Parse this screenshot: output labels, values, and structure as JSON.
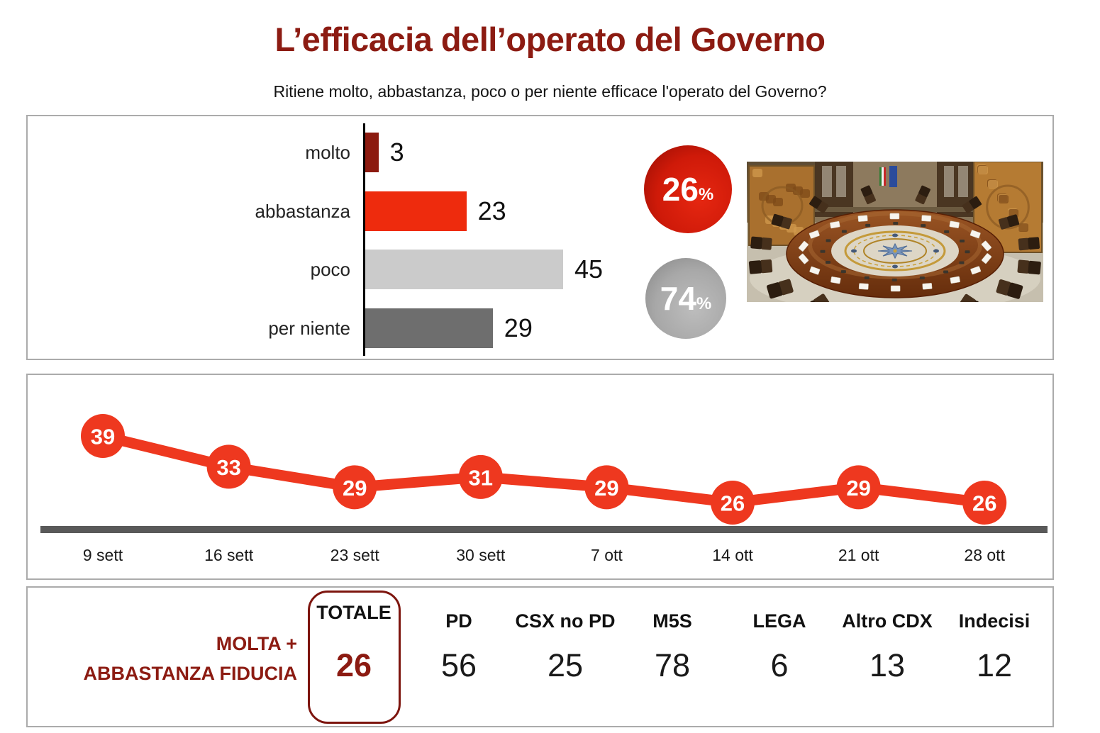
{
  "page": {
    "title": "L’efficacia dell’operato del Governo",
    "subtitle": "Ritiene molto, abbastanza, poco o per niente efficace l'operato del Governo?"
  },
  "colors": {
    "maroon": "#8C1B12",
    "bar_molto": "#8C1A0F",
    "bar_abbastanza": "#EE2B0D",
    "bar_poco": "#CBCBCB",
    "bar_per_niente": "#6E6E6E",
    "line_red": "#EE381F",
    "trend_axis_gray": "#595959",
    "panel_border_gray": "#ABABAB"
  },
  "summary_circles": {
    "positive": {
      "value": "26",
      "suffix": "%",
      "color": "#C8170A"
    },
    "negative": {
      "value": "74",
      "suffix": "%",
      "color": "#9E9E9E"
    }
  },
  "bottom_table": {
    "row_label_line1": "MOLTA +",
    "row_label_line2": "ABBASTANZA FIDUCIA",
    "total": {
      "header": "TOTALE",
      "value": "26"
    },
    "columns": [
      {
        "label": "PD",
        "value": "56"
      },
      {
        "label": "CSX no PD",
        "value": "25"
      },
      {
        "label": "M5S",
        "value": "78"
      },
      {
        "label": "LEGA",
        "value": "6"
      },
      {
        "label": "Altro CDX",
        "value": "13"
      },
      {
        "label": "Indecisi",
        "value": "12"
      }
    ]
  },
  "chart_data": [
    {
      "type": "bar",
      "orientation": "horizontal",
      "categories": [
        "molto",
        "abbastanza",
        "poco",
        "per niente"
      ],
      "values": [
        3,
        23,
        45,
        29
      ],
      "colors": [
        "#8C1A0F",
        "#EE2B0D",
        "#CBCBCB",
        "#6E6E6E"
      ],
      "xlim": [
        0,
        48
      ],
      "value_labels": true,
      "legend": "none"
    },
    {
      "type": "pie",
      "slices": [
        {
          "label": "26%",
          "value": 26,
          "color": "#C8170A"
        },
        {
          "label": "74%",
          "value": 74,
          "color": "#9E9E9E"
        }
      ],
      "note": "molto+abbastanza vs poco+per niente"
    },
    {
      "type": "line",
      "x": [
        "9 sett",
        "16 sett",
        "23 sett",
        "30 sett",
        "7 ott",
        "14 ott",
        "21 ott",
        "28 ott"
      ],
      "values": [
        39,
        33,
        29,
        31,
        29,
        26,
        29,
        26
      ],
      "line_color": "#EE381F",
      "markers": "labeled-circles",
      "ylim": [
        18,
        45
      ],
      "grid": false,
      "legend": "none"
    },
    {
      "type": "table",
      "row_label": "MOLTA + ABBASTANZA FIDUCIA",
      "columns": [
        "TOTALE",
        "PD",
        "CSX no PD",
        "M5S",
        "LEGA",
        "Altro CDX",
        "Indecisi"
      ],
      "values": [
        26,
        56,
        25,
        78,
        6,
        13,
        12
      ],
      "highlight_column": "TOTALE"
    }
  ]
}
